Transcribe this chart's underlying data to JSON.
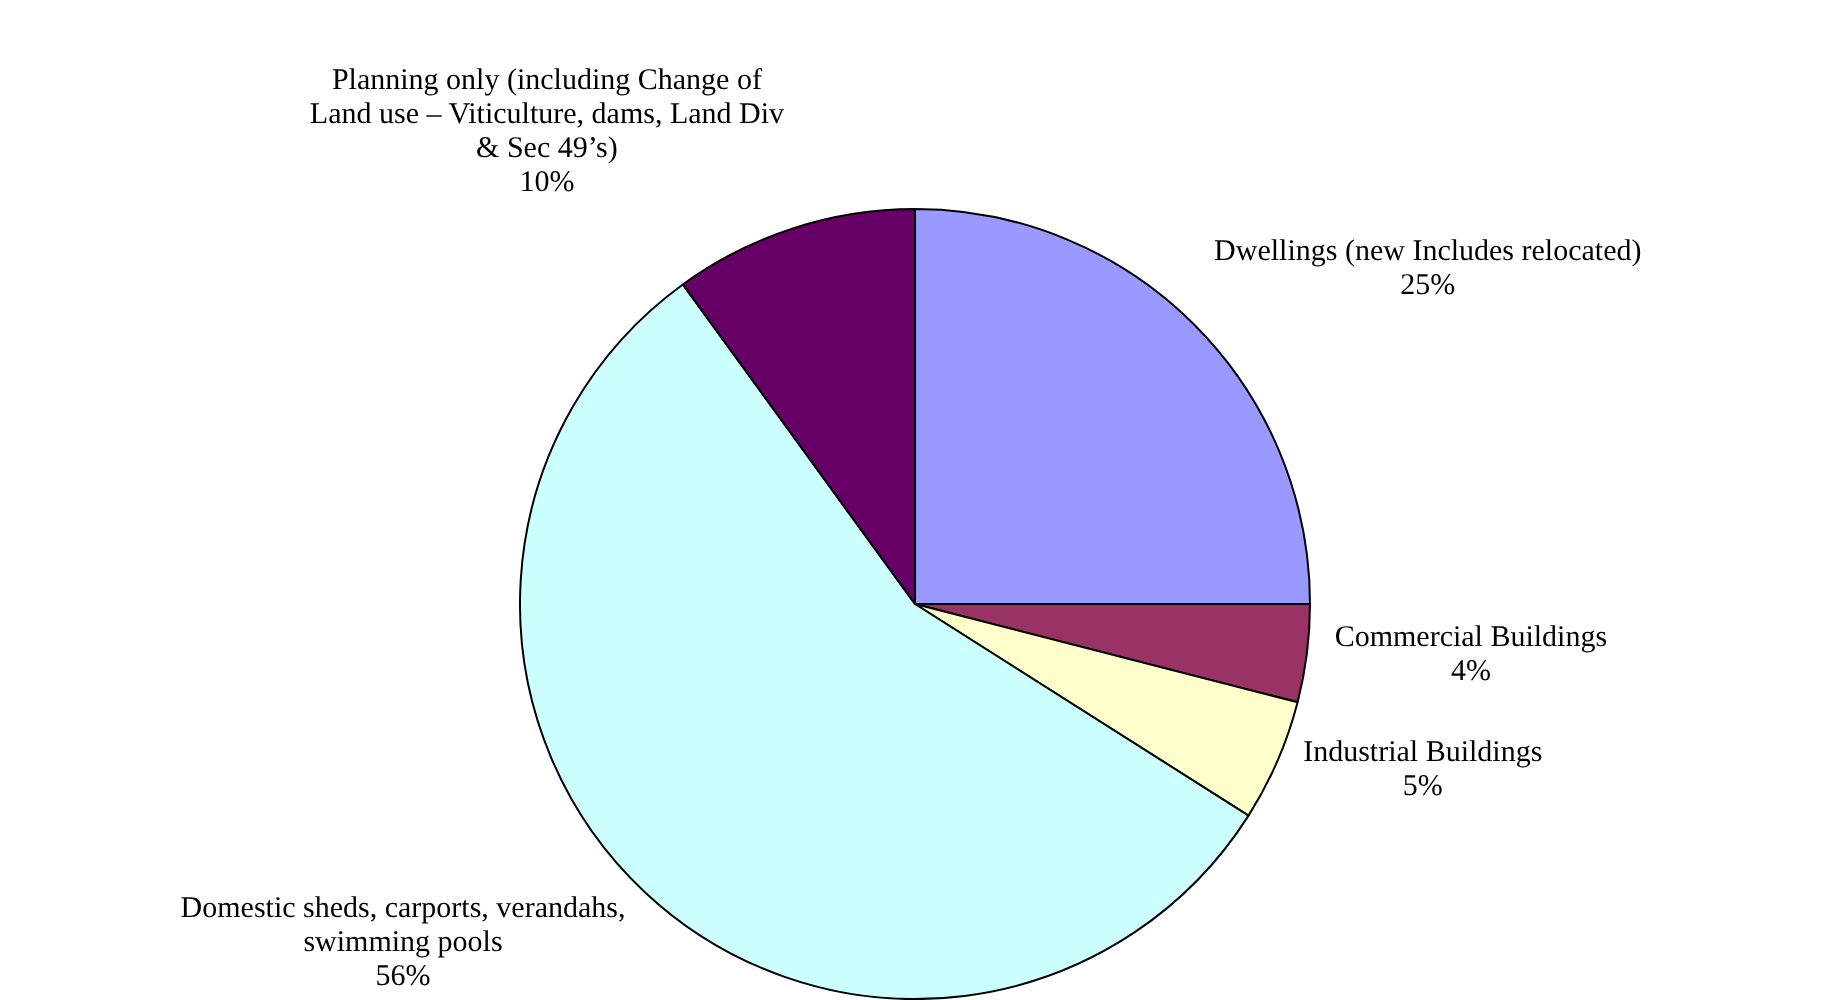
{
  "chart_data": {
    "type": "pie",
    "categories": [
      "Dwellings (new Includes relocated)",
      "Commercial Buildings",
      "Industrial Buildings",
      "Domestic sheds, carports, verandahs, swimming pools",
      "Planning only (including Change of Land use – Viticulture, dams, Land Div & Sec 49’s)"
    ],
    "values": [
      25,
      4,
      5,
      56,
      10
    ],
    "value_labels": [
      "25%",
      "4%",
      "5%",
      "56%",
      "10%"
    ],
    "colors": [
      "#9999ff",
      "#993366",
      "#ffffcc",
      "#ccffff",
      "#660066"
    ],
    "legend": false
  }
}
